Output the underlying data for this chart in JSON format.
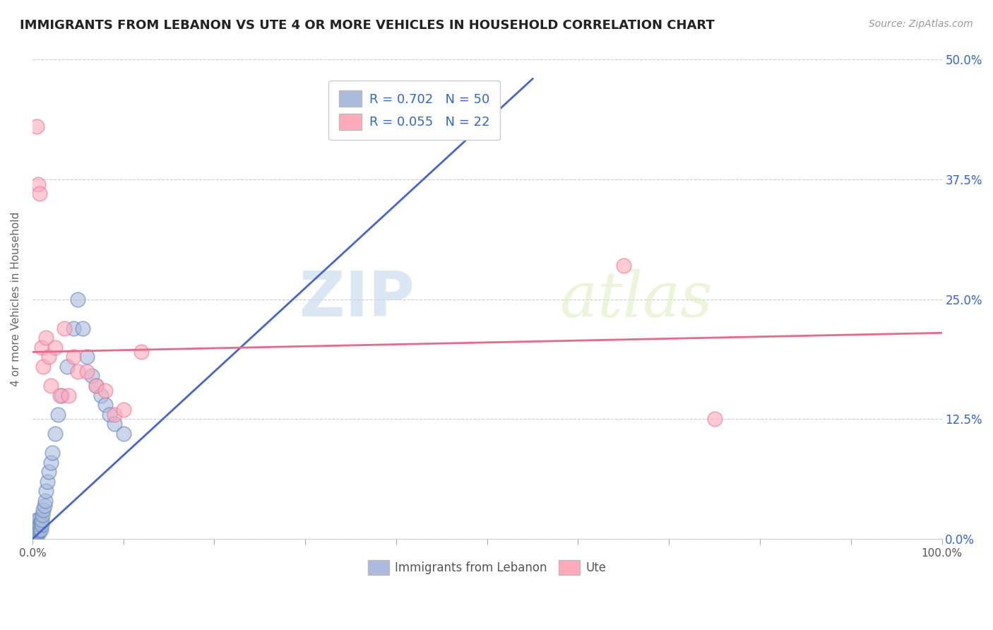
{
  "title": "IMMIGRANTS FROM LEBANON VS UTE 4 OR MORE VEHICLES IN HOUSEHOLD CORRELATION CHART",
  "source": "Source: ZipAtlas.com",
  "ylabel": "4 or more Vehicles in Household",
  "xlim": [
    0.0,
    1.0
  ],
  "ylim": [
    0.0,
    0.5
  ],
  "ytick_labels": [
    "0.0%",
    "12.5%",
    "25.0%",
    "37.5%",
    "50.0%"
  ],
  "ytick_vals": [
    0.0,
    0.125,
    0.25,
    0.375,
    0.5
  ],
  "grid_color": "#cccccc",
  "background_color": "#ffffff",
  "legend1_label": "Immigrants from Lebanon",
  "legend2_label": "Ute",
  "R1": 0.702,
  "N1": 50,
  "R2": 0.055,
  "N2": 22,
  "blue_color": "#aabbdd",
  "blue_edge_color": "#6688bb",
  "pink_color": "#ffaabb",
  "pink_edge_color": "#ee7799",
  "blue_line_color": "#4466cc",
  "pink_line_color": "#ee6688",
  "watermark_zip": "ZIP",
  "watermark_atlas": "atlas",
  "title_color": "#222222",
  "legend_text_color": "#3366cc",
  "blue_scatter_x": [
    0.001,
    0.002,
    0.002,
    0.003,
    0.003,
    0.003,
    0.004,
    0.004,
    0.004,
    0.004,
    0.005,
    0.005,
    0.005,
    0.005,
    0.006,
    0.006,
    0.006,
    0.007,
    0.007,
    0.007,
    0.008,
    0.008,
    0.009,
    0.009,
    0.01,
    0.01,
    0.011,
    0.012,
    0.013,
    0.014,
    0.015,
    0.016,
    0.018,
    0.02,
    0.022,
    0.025,
    0.028,
    0.032,
    0.038,
    0.045,
    0.05,
    0.055,
    0.06,
    0.065,
    0.07,
    0.075,
    0.08,
    0.085,
    0.09,
    0.1
  ],
  "blue_scatter_y": [
    0.005,
    0.008,
    0.01,
    0.005,
    0.008,
    0.012,
    0.003,
    0.006,
    0.009,
    0.015,
    0.005,
    0.007,
    0.01,
    0.02,
    0.005,
    0.01,
    0.015,
    0.008,
    0.012,
    0.02,
    0.01,
    0.015,
    0.01,
    0.018,
    0.015,
    0.02,
    0.025,
    0.03,
    0.035,
    0.04,
    0.05,
    0.06,
    0.07,
    0.08,
    0.09,
    0.11,
    0.13,
    0.15,
    0.18,
    0.22,
    0.25,
    0.22,
    0.19,
    0.17,
    0.16,
    0.15,
    0.14,
    0.13,
    0.12,
    0.11
  ],
  "pink_scatter_x": [
    0.005,
    0.006,
    0.008,
    0.01,
    0.012,
    0.015,
    0.018,
    0.02,
    0.025,
    0.03,
    0.035,
    0.04,
    0.045,
    0.05,
    0.06,
    0.07,
    0.08,
    0.09,
    0.1,
    0.12,
    0.65,
    0.75
  ],
  "pink_scatter_y": [
    0.43,
    0.37,
    0.36,
    0.2,
    0.18,
    0.21,
    0.19,
    0.16,
    0.2,
    0.15,
    0.22,
    0.15,
    0.19,
    0.175,
    0.175,
    0.16,
    0.155,
    0.13,
    0.135,
    0.195,
    0.285,
    0.125
  ],
  "blue_line_x": [
    0.0,
    0.55
  ],
  "blue_line_y": [
    0.0,
    0.48
  ],
  "pink_line_x": [
    0.0,
    1.0
  ],
  "pink_line_y": [
    0.195,
    0.215
  ]
}
